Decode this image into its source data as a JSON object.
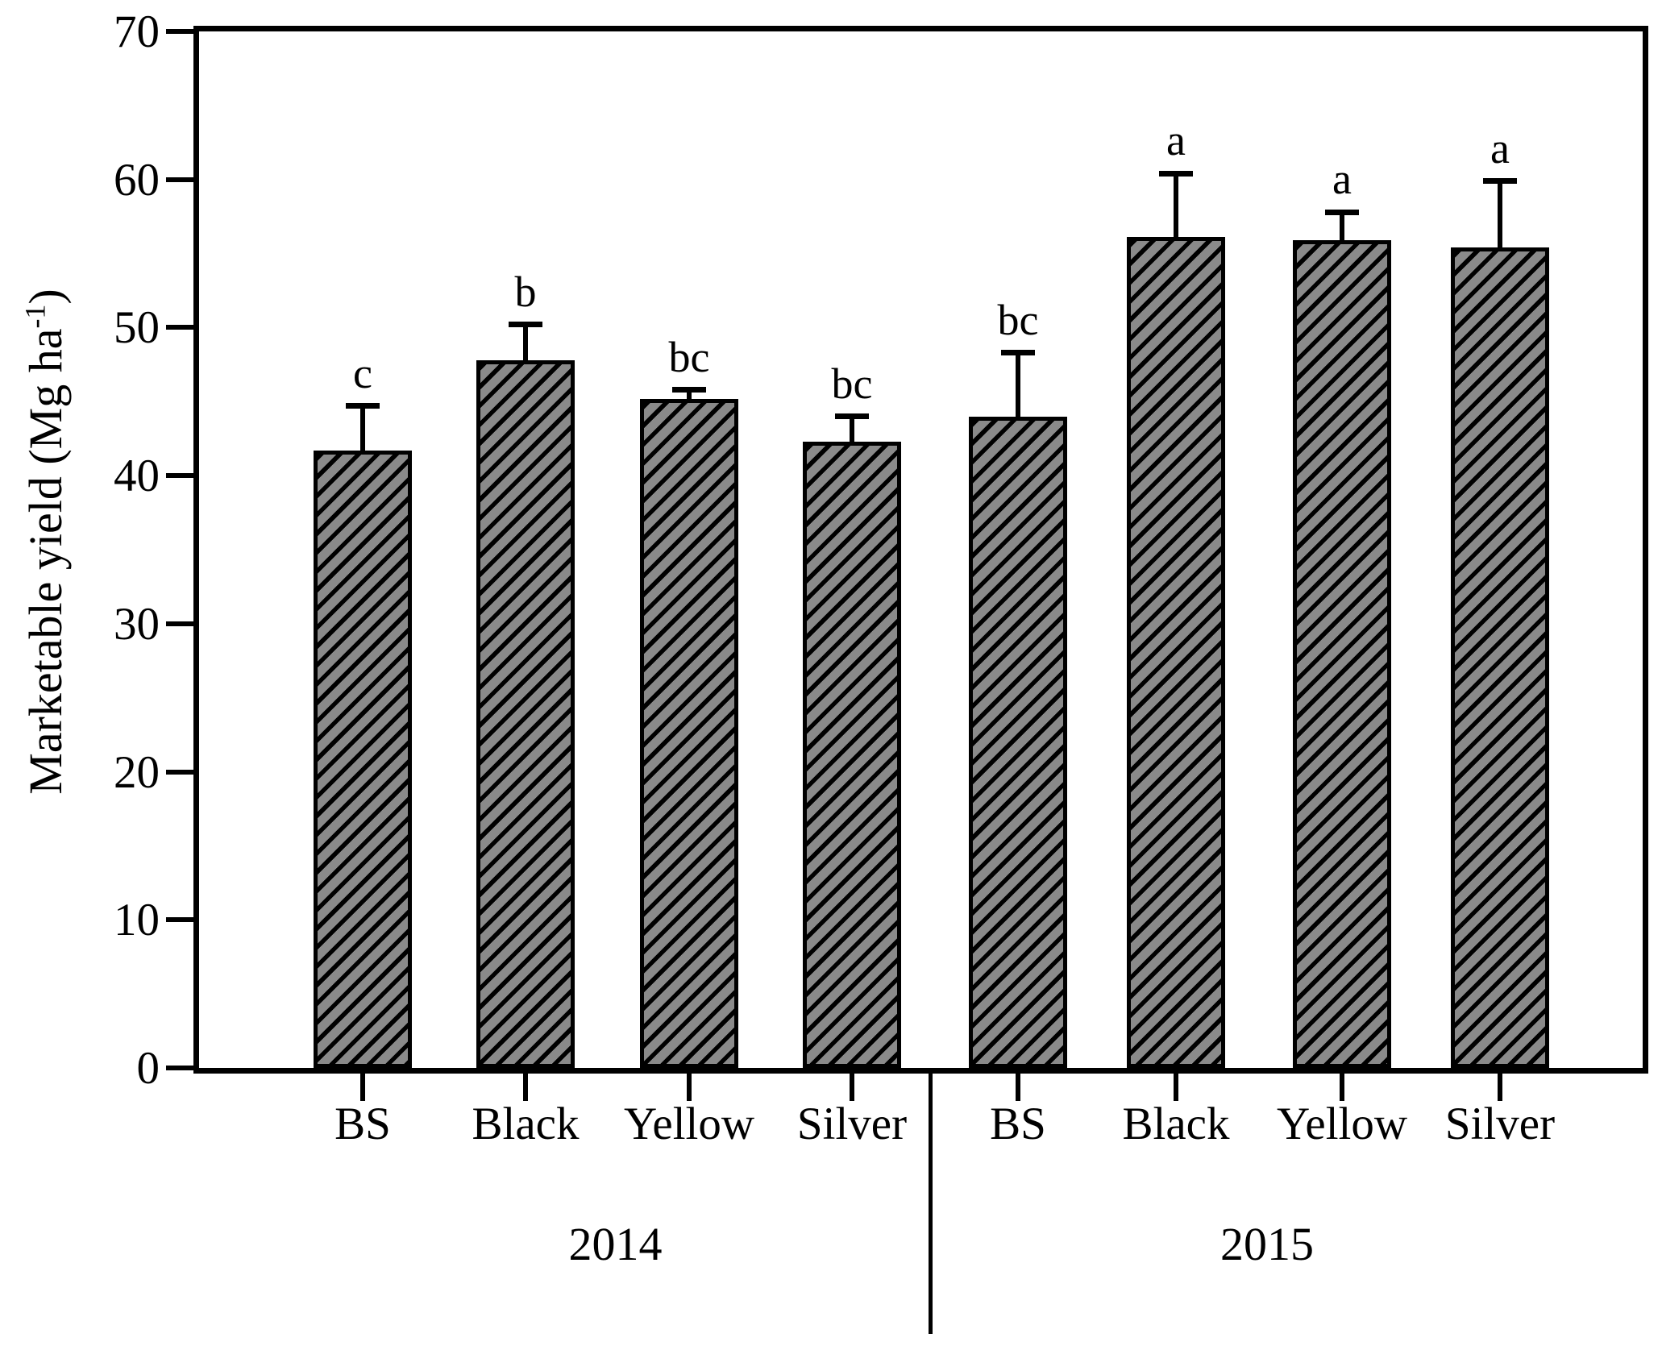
{
  "figure": {
    "background": "#ffffff",
    "axis_color": "#000000",
    "ylabel": {
      "prefix": "Marketable yield (Mg ha",
      "superscript": "-1",
      "suffix": ")"
    }
  },
  "chart_data": {
    "type": "bar",
    "title": "",
    "xlabel": "",
    "ylabel": "Marketable yield (Mg ha-1)",
    "ylim": [
      0,
      70
    ],
    "yticks": [
      0,
      10,
      20,
      30,
      40,
      50,
      60,
      70
    ],
    "grid": false,
    "legend": false,
    "bar_fill": "#8a8a8a",
    "hatch": "diagonal-forward",
    "hatch_color": "#000000",
    "error_bars": "upper",
    "groups": [
      {
        "label": "2014",
        "bars": [
          {
            "category": "BS",
            "value": 41.7,
            "error": 3.0,
            "letter": "c"
          },
          {
            "category": "Black",
            "value": 47.8,
            "error": 2.4,
            "letter": "b"
          },
          {
            "category": "Yellow",
            "value": 45.2,
            "error": 0.6,
            "letter": "bc"
          },
          {
            "category": "Silver",
            "value": 42.3,
            "error": 1.7,
            "letter": "bc"
          }
        ]
      },
      {
        "label": "2015",
        "bars": [
          {
            "category": "BS",
            "value": 44.0,
            "error": 4.3,
            "letter": "bc"
          },
          {
            "category": "Black",
            "value": 56.1,
            "error": 4.3,
            "letter": "a"
          },
          {
            "category": "Yellow",
            "value": 55.9,
            "error": 1.9,
            "letter": "a"
          },
          {
            "category": "Silver",
            "value": 55.4,
            "error": 4.5,
            "letter": "a"
          }
        ]
      }
    ]
  }
}
